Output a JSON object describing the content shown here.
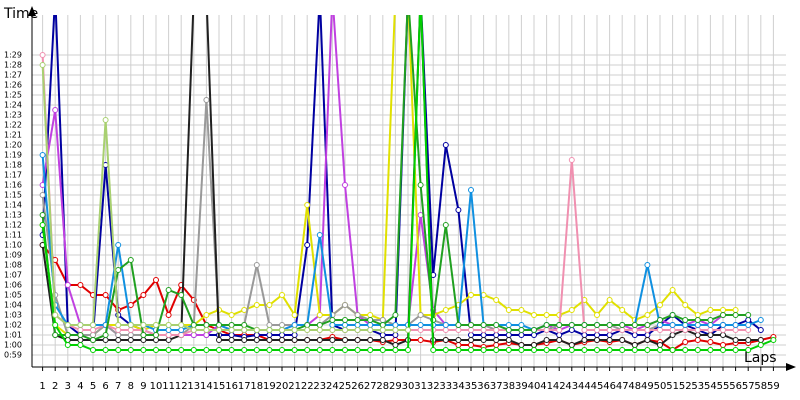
{
  "chart_data": {
    "type": "line",
    "y_axis_label": "Time",
    "x_axis_label": "Laps",
    "x": [
      1,
      2,
      3,
      4,
      5,
      6,
      7,
      8,
      9,
      10,
      11,
      12,
      13,
      14,
      15,
      16,
      17,
      18,
      19,
      20,
      21,
      22,
      23,
      24,
      25,
      26,
      27,
      28,
      29,
      30,
      31,
      32,
      33,
      34,
      35,
      36,
      37,
      38,
      39,
      40,
      41,
      42,
      43,
      44,
      45,
      46,
      47,
      48,
      49,
      50,
      51,
      52,
      53,
      54,
      55,
      56,
      57,
      58,
      59
    ],
    "xlim": [
      0,
      60
    ],
    "xticks": [
      1,
      2,
      3,
      4,
      5,
      6,
      7,
      8,
      9,
      10,
      11,
      12,
      13,
      14,
      15,
      16,
      17,
      18,
      19,
      20,
      21,
      22,
      23,
      24,
      25,
      26,
      27,
      28,
      29,
      30,
      31,
      32,
      33,
      34,
      35,
      36,
      37,
      38,
      39,
      40,
      41,
      42,
      43,
      44,
      45,
      46,
      47,
      48,
      49,
      50,
      51,
      52,
      53,
      54,
      55,
      56,
      57,
      58,
      59
    ],
    "ylim": [
      58,
      93
    ],
    "yticks": [
      {
        "value": 59,
        "label": "0:59"
      },
      {
        "value": 60,
        "label": "1:00"
      },
      {
        "value": 61,
        "label": "1:01"
      },
      {
        "value": 62,
        "label": "1:02"
      },
      {
        "value": 63,
        "label": "1:03"
      },
      {
        "value": 64,
        "label": "1:04"
      },
      {
        "value": 65,
        "label": "1:05"
      },
      {
        "value": 66,
        "label": "1:06"
      },
      {
        "value": 67,
        "label": "1:07"
      },
      {
        "value": 68,
        "label": "1:08"
      },
      {
        "value": 69,
        "label": "1:09"
      },
      {
        "value": 70,
        "label": "1:10"
      },
      {
        "value": 71,
        "label": "1:11"
      },
      {
        "value": 72,
        "label": "1:12"
      },
      {
        "value": 73,
        "label": "1:13"
      },
      {
        "value": 74,
        "label": "1:14"
      },
      {
        "value": 75,
        "label": "1:15"
      },
      {
        "value": 76,
        "label": "1:16"
      },
      {
        "value": 77,
        "label": "1:17"
      },
      {
        "value": 78,
        "label": "1:18"
      },
      {
        "value": 79,
        "label": "1:19"
      },
      {
        "value": 80,
        "label": "1:20"
      },
      {
        "value": 81,
        "label": "1:21"
      },
      {
        "value": 82,
        "label": "1:22"
      },
      {
        "value": 83,
        "label": "1:23"
      },
      {
        "value": 84,
        "label": "1:24"
      },
      {
        "value": 85,
        "label": "1:25"
      },
      {
        "value": 86,
        "label": "1:26"
      },
      {
        "value": 87,
        "label": "1:27"
      },
      {
        "value": 88,
        "label": "1:28"
      },
      {
        "value": 89,
        "label": "1:29"
      }
    ],
    "grid": true,
    "series": [
      {
        "color": "#e00000",
        "values": [
          70,
          68.5,
          66,
          66,
          65,
          65,
          63.5,
          64,
          65,
          66.5,
          63,
          66,
          64.5,
          62,
          61.5,
          61,
          61,
          61,
          60.5,
          60.5,
          60.5,
          60.5,
          60.5,
          60.8,
          60.5,
          60.5,
          60.5,
          60.3,
          60.5,
          60.5,
          60.5,
          60.3,
          60.5,
          60,
          60,
          59.8,
          60,
          60.2,
          60,
          60,
          60.2,
          60.5,
          60,
          60.3,
          60.5,
          60.3,
          60.5,
          60,
          60.5,
          60.3,
          59.5,
          60.3,
          60.5,
          60.3,
          60,
          60.2,
          60.2,
          60.5,
          60.8
        ]
      },
      {
        "color": "#0000a0",
        "values": [
          71,
          95,
          62,
          61,
          61,
          78,
          63,
          62,
          61.5,
          61,
          61,
          61,
          61,
          61,
          61,
          61,
          60.8,
          61,
          61,
          61,
          61,
          70,
          95,
          62,
          61.5,
          61.5,
          61.5,
          61,
          61,
          95,
          95,
          67,
          80,
          73.5,
          61,
          61,
          61,
          61,
          61,
          61,
          61.5,
          61,
          61.5,
          61,
          61,
          61,
          61.5,
          61,
          61,
          62,
          63,
          62,
          61.5,
          61,
          62,
          62,
          62.5,
          61.5,
          null
        ]
      },
      {
        "color": "#c040e0",
        "values": [
          76,
          83.5,
          66,
          62,
          62,
          62,
          61,
          61,
          61,
          61,
          61,
          61,
          61,
          61,
          62,
          61.5,
          61.5,
          61.5,
          61.5,
          61.5,
          62,
          62,
          63,
          95,
          76,
          63,
          62,
          62,
          62,
          62,
          73,
          63.5,
          62,
          62,
          62,
          62,
          61.5,
          61.5,
          61.5,
          61.5,
          62,
          61.5,
          62,
          62,
          62,
          62,
          62,
          61.5,
          62,
          62.5,
          62,
          62,
          62.5,
          62,
          63,
          null,
          null,
          null,
          null
        ]
      },
      {
        "color": "#e0e000",
        "values": [
          72,
          62,
          61,
          61,
          61,
          62,
          62,
          62,
          61.5,
          62,
          62,
          62,
          62,
          63,
          63.5,
          63,
          63.5,
          64,
          64,
          65,
          63,
          74,
          63,
          63,
          64,
          63,
          63,
          62.5,
          95,
          95,
          63,
          63,
          63.5,
          64,
          65,
          65,
          64.5,
          63.5,
          63.5,
          63,
          63,
          63,
          63.5,
          64.5,
          63,
          64.5,
          63.5,
          62.5,
          63,
          64,
          65.5,
          64,
          63,
          63.5,
          63.5,
          63.5,
          null,
          null,
          null
        ]
      },
      {
        "color": "#999999",
        "values": [
          75,
          65,
          61,
          61,
          61,
          62,
          61,
          61,
          61,
          61,
          61,
          61,
          62,
          84.5,
          62,
          62,
          62,
          68,
          62,
          62,
          62,
          62,
          62,
          63,
          64,
          63,
          62.5,
          62.5,
          62,
          62,
          63,
          62.5,
          62,
          62,
          62,
          62,
          61.5,
          61.5,
          61.5,
          61.5,
          61.5,
          62,
          62,
          62,
          62,
          62,
          61.5,
          61.5,
          61.5,
          62,
          62,
          62,
          62,
          62,
          null,
          null,
          null,
          null,
          null
        ]
      },
      {
        "color": "#202020",
        "values": [
          70,
          61,
          60.5,
          60.5,
          60.5,
          60.5,
          60.5,
          60.5,
          60.5,
          60.5,
          60.5,
          61,
          95,
          95,
          60.5,
          60.5,
          60.5,
          60.5,
          60.5,
          60.5,
          60.5,
          60.5,
          60.5,
          60.5,
          60.5,
          60.5,
          60.5,
          60.5,
          60,
          60.5,
          95,
          60.5,
          60.5,
          60.5,
          60.5,
          60.5,
          60.5,
          60.5,
          60,
          60,
          60.5,
          60.5,
          60,
          60.5,
          60.5,
          60.5,
          60.5,
          60,
          60.5,
          60,
          61,
          61.5,
          61,
          61,
          61,
          60.5,
          60.5,
          60.5,
          null
        ]
      },
      {
        "color": "#f090b0",
        "values": [
          89,
          63,
          62,
          61.5,
          61.5,
          62,
          61.5,
          61.5,
          61.5,
          61,
          61,
          61,
          61.5,
          61.5,
          61.5,
          61.5,
          61.5,
          61.5,
          61.5,
          61.5,
          61.5,
          61.5,
          61.5,
          61.5,
          61.5,
          61.5,
          61.5,
          61.5,
          61.5,
          61.5,
          61.5,
          61.5,
          61.5,
          61.5,
          61.5,
          61.5,
          61.5,
          61.5,
          61.5,
          61.5,
          61.5,
          61.5,
          78.5,
          61.5,
          61.5,
          61.5,
          61.5,
          61.5,
          61.5,
          61.5,
          61.5,
          61.5,
          61.5,
          61.5,
          61.5,
          61.5,
          61.5,
          null,
          null
        ]
      },
      {
        "color": "#1090e0",
        "values": [
          79,
          64,
          62,
          62,
          62,
          62,
          70,
          62,
          62,
          61.5,
          61.5,
          61.5,
          62,
          62,
          62,
          61.5,
          61.5,
          61.5,
          61.5,
          61.5,
          62,
          62,
          71,
          62,
          62,
          62,
          62,
          62,
          62,
          62,
          62,
          62,
          62,
          62,
          75.5,
          62,
          62,
          62,
          62,
          61.5,
          62,
          62,
          62,
          62,
          62,
          62,
          62,
          62,
          68,
          62,
          62,
          62,
          62,
          62,
          62,
          62,
          62,
          62.5,
          null
        ]
      },
      {
        "color": "#20a020",
        "values": [
          73,
          61,
          61,
          61,
          60.5,
          61,
          67.5,
          68.5,
          61,
          61,
          65.5,
          65,
          62,
          62,
          62,
          62,
          62,
          61.5,
          61.5,
          61.5,
          61.5,
          62,
          62,
          62.5,
          62.5,
          62.5,
          62.5,
          62,
          63,
          95,
          76,
          62.5,
          72,
          62,
          62,
          62,
          62,
          61.5,
          61.5,
          61.5,
          62,
          62,
          62,
          62,
          62,
          62,
          62,
          62,
          62,
          62.5,
          63,
          62.5,
          62.5,
          62.5,
          63,
          63,
          63,
          null,
          null
        ]
      },
      {
        "color": "#00d000",
        "values": [
          72,
          62,
          60,
          60,
          59.5,
          59.5,
          59.5,
          59.5,
          59.5,
          59.5,
          59.5,
          59.5,
          59.5,
          59.5,
          59.5,
          59.5,
          59.5,
          59.5,
          59.5,
          59.5,
          59.5,
          59.5,
          59.5,
          59.5,
          59.5,
          59.5,
          59.5,
          59.5,
          59.5,
          59.5,
          95,
          59.5,
          59.5,
          59.5,
          59.5,
          59.5,
          59.5,
          59.5,
          59.5,
          59.5,
          59.5,
          59.5,
          59.5,
          59.5,
          59.5,
          59.5,
          59.5,
          59.5,
          59.5,
          59.5,
          59.5,
          59.5,
          59.5,
          59.5,
          59.5,
          59.5,
          59.5,
          60,
          60.5
        ]
      },
      {
        "color": "#a8d070",
        "values": [
          88,
          63,
          62,
          62,
          62,
          82.5,
          62,
          62,
          62,
          62,
          62,
          62,
          61.5,
          61.5,
          61.5,
          61.5,
          61.5,
          61.5,
          61.5,
          61.5,
          61.5,
          61.5,
          61.5,
          61.5,
          61.5,
          61.5,
          61.5,
          61.5,
          61.5,
          61.5,
          null,
          null,
          null,
          null,
          null,
          null,
          null,
          null,
          null,
          null,
          null,
          null,
          null,
          null,
          null,
          null,
          null,
          null,
          null,
          null,
          null,
          null,
          null,
          null,
          null,
          null,
          null,
          null,
          null
        ]
      }
    ]
  }
}
